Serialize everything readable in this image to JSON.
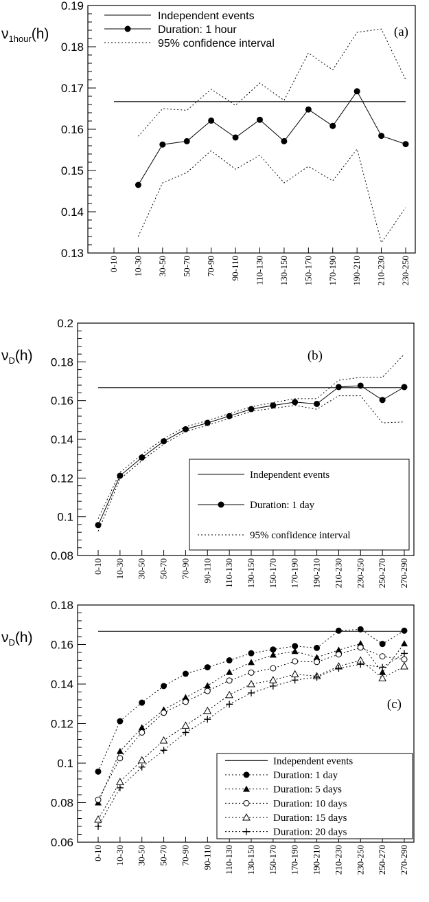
{
  "chart_data": [
    {
      "panel_label": "(a)",
      "type": "line",
      "ylabel_symbol": "ν",
      "ylabel_subscript": "1hour",
      "ylabel_suffix": "(h)",
      "ylim": [
        0.13,
        0.19
      ],
      "yticks": [
        "0.13",
        "0.14",
        "0.15",
        "0.16",
        "0.17",
        "0.18",
        "0.19"
      ],
      "categories": [
        "0-10",
        "10-30",
        "30-50",
        "50-70",
        "70-90",
        "90-110",
        "110-130",
        "130-150",
        "150-170",
        "170-190",
        "190-210",
        "210-230",
        "230-250"
      ],
      "grid": false,
      "legend_position": "top-left",
      "legend": [
        "Independent events",
        "Duration: 1 hour",
        "95% confidence interval"
      ],
      "independent_events": 0.1667,
      "series": [
        {
          "name": "Duration: 1 hour",
          "marker": "filled-circle",
          "values": [
            null,
            0.1465,
            0.1563,
            0.1571,
            0.1621,
            0.158,
            0.1623,
            0.1571,
            0.1648,
            0.1608,
            0.1692,
            0.1584,
            0.1564
          ]
        },
        {
          "name": "95% confidence interval",
          "style": "dotted",
          "bound": "upper",
          "values": [
            null,
            0.1583,
            0.165,
            0.1646,
            0.1697,
            0.1658,
            0.1712,
            0.167,
            0.1785,
            0.1744,
            0.1835,
            0.1843,
            0.172
          ]
        },
        {
          "name": "95% confidence interval",
          "style": "dotted",
          "bound": "lower",
          "values": [
            null,
            0.134,
            0.147,
            0.1495,
            0.1548,
            0.1503,
            0.1537,
            0.147,
            0.151,
            0.1475,
            0.1552,
            0.1325,
            0.141
          ]
        }
      ]
    },
    {
      "panel_label": "(b)",
      "type": "line",
      "ylabel_symbol": "ν",
      "ylabel_subscript": "D",
      "ylabel_suffix": "(h)",
      "ylim": [
        0.08,
        0.2
      ],
      "yticks": [
        "0.08",
        "0.1",
        "0.12",
        "0.14",
        "0.16",
        "0.18",
        "0.2"
      ],
      "categories": [
        "0-10",
        "10-30",
        "30-50",
        "50-70",
        "70-90",
        "90-110",
        "110-130",
        "130-150",
        "150-170",
        "170-190",
        "190-210",
        "210-230",
        "230-250",
        "250-270",
        "270-290"
      ],
      "grid": false,
      "legend_position": "bottom-right",
      "legend": [
        "Independent events",
        "Duration: 1 day",
        "95% confidence interval"
      ],
      "independent_events": 0.1667,
      "series": [
        {
          "name": "Duration: 1 day",
          "marker": "filled-circle",
          "values": [
            0.0957,
            0.1212,
            0.1306,
            0.139,
            0.1452,
            0.1485,
            0.152,
            0.1556,
            0.1575,
            0.1592,
            0.1583,
            0.167,
            0.1677,
            0.1603,
            0.167
          ]
        },
        {
          "name": "95% confidence interval",
          "style": "dotted",
          "bound": "upper",
          "values": [
            0.099,
            0.123,
            0.1322,
            0.1404,
            0.1465,
            0.1497,
            0.1532,
            0.1568,
            0.159,
            0.161,
            0.161,
            0.1705,
            0.172,
            0.172,
            0.184
          ]
        },
        {
          "name": "95% confidence interval",
          "style": "dotted",
          "bound": "lower",
          "values": [
            0.0925,
            0.1195,
            0.129,
            0.1376,
            0.144,
            0.1472,
            0.1508,
            0.1545,
            0.156,
            0.1575,
            0.1555,
            0.1625,
            0.1625,
            0.1485,
            0.149
          ]
        }
      ]
    },
    {
      "panel_label": "(c)",
      "type": "line",
      "ylabel_symbol": "ν",
      "ylabel_subscript": "D",
      "ylabel_suffix": "(h)",
      "ylim": [
        0.06,
        0.18
      ],
      "yticks": [
        "0.06",
        "0.08",
        "0.1",
        "0.12",
        "0.14",
        "0.16",
        "0.18"
      ],
      "categories": [
        "0-10",
        "10-30",
        "30-50",
        "50-70",
        "70-90",
        "90-110",
        "110-130",
        "130-150",
        "150-170",
        "170-190",
        "190-210",
        "210-230",
        "230-250",
        "250-270",
        "270-290"
      ],
      "grid": false,
      "legend_position": "bottom-right",
      "legend": [
        "Independent events",
        "Duration: 1 day",
        "Duration: 5 days",
        "Duration: 10 days",
        "Duration: 15 days",
        "Duration: 20 days"
      ],
      "independent_events": 0.1667,
      "series": [
        {
          "name": "Duration: 1 day",
          "marker": "filled-circle",
          "values": [
            0.0957,
            0.1212,
            0.1306,
            0.139,
            0.1452,
            0.1485,
            0.152,
            0.1556,
            0.1575,
            0.1592,
            0.1583,
            0.167,
            0.1677,
            0.1603,
            0.167
          ]
        },
        {
          "name": "Duration: 5 days",
          "marker": "filled-triangle",
          "values": [
            0.08,
            0.106,
            0.118,
            0.127,
            0.1332,
            0.1392,
            0.146,
            0.151,
            0.1548,
            0.1566,
            0.1535,
            0.1572,
            0.1605,
            0.146,
            0.1605
          ]
        },
        {
          "name": "Duration: 10 days",
          "marker": "open-circle",
          "values": [
            0.0815,
            0.1025,
            0.1155,
            0.1255,
            0.131,
            0.1365,
            0.1418,
            0.1458,
            0.148,
            0.1515,
            0.1512,
            0.155,
            0.1585,
            0.154,
            0.1525
          ]
        },
        {
          "name": "Duration: 15 days",
          "marker": "open-triangle",
          "values": [
            0.0715,
            0.0905,
            0.1015,
            0.1115,
            0.119,
            0.1265,
            0.1345,
            0.14,
            0.142,
            0.145,
            0.144,
            0.149,
            0.152,
            0.143,
            0.149
          ]
        },
        {
          "name": "Duration: 20 days",
          "marker": "plus",
          "values": [
            0.068,
            0.0875,
            0.098,
            0.1065,
            0.1155,
            0.1222,
            0.1298,
            0.1355,
            0.139,
            0.142,
            0.1435,
            0.148,
            0.15,
            0.1485,
            0.1555
          ]
        }
      ]
    }
  ]
}
